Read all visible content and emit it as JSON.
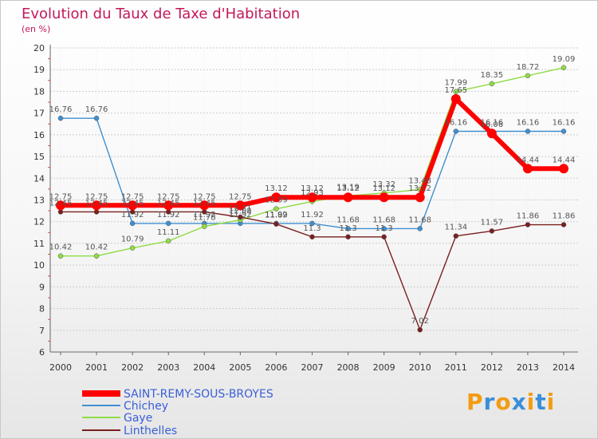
{
  "page": {
    "title": "Evolution du Taux de Taxe d'Habitation",
    "unit": "(en %)",
    "logo": "Proxiti"
  },
  "colors": {
    "SAINT-REMY-SOUS-BROYES": "#ff0000",
    "Chichey": "#3f8fd0",
    "Gaye": "#8fdc45",
    "Linthelles": "#7a1f1f",
    "legend_text": "#3a5fd8",
    "grid": "#cccccc",
    "axis": "#666666"
  },
  "chart_data": {
    "type": "line",
    "title": "Evolution du Taux de Taxe d'Habitation",
    "ylabel": "(en %)",
    "xlabel": "",
    "x": [
      2000,
      2001,
      2002,
      2003,
      2004,
      2005,
      2006,
      2007,
      2008,
      2009,
      2010,
      2011,
      2012,
      2013,
      2014
    ],
    "ylim": [
      6,
      20
    ],
    "yticks": [
      6,
      7,
      8,
      9,
      10,
      11,
      12,
      13,
      14,
      15,
      16,
      17,
      18,
      19,
      20
    ],
    "grid": "horizontal dashed",
    "legend": "bottom-left",
    "series": [
      {
        "name": "SAINT-REMY-SOUS-BROYES",
        "values": [
          12.75,
          12.75,
          12.75,
          12.75,
          12.75,
          12.75,
          13.12,
          13.12,
          13.12,
          13.12,
          13.12,
          17.65,
          16.06,
          14.44,
          14.44
        ]
      },
      {
        "name": "Chichey",
        "values": [
          16.76,
          16.76,
          11.92,
          11.92,
          11.92,
          11.92,
          11.92,
          11.92,
          11.68,
          11.68,
          11.68,
          16.16,
          16.16,
          16.16,
          16.16
        ]
      },
      {
        "name": "Gaye",
        "values": [
          10.42,
          10.42,
          10.79,
          11.11,
          11.78,
          12.08,
          12.59,
          12.93,
          13.19,
          13.32,
          13.48,
          17.99,
          18.35,
          18.72,
          19.09
        ]
      },
      {
        "name": "Linthelles",
        "values": [
          12.45,
          12.45,
          12.45,
          12.45,
          12.45,
          12.21,
          11.89,
          11.3,
          11.3,
          11.3,
          7.02,
          11.34,
          11.57,
          11.86,
          11.86
        ]
      }
    ]
  }
}
